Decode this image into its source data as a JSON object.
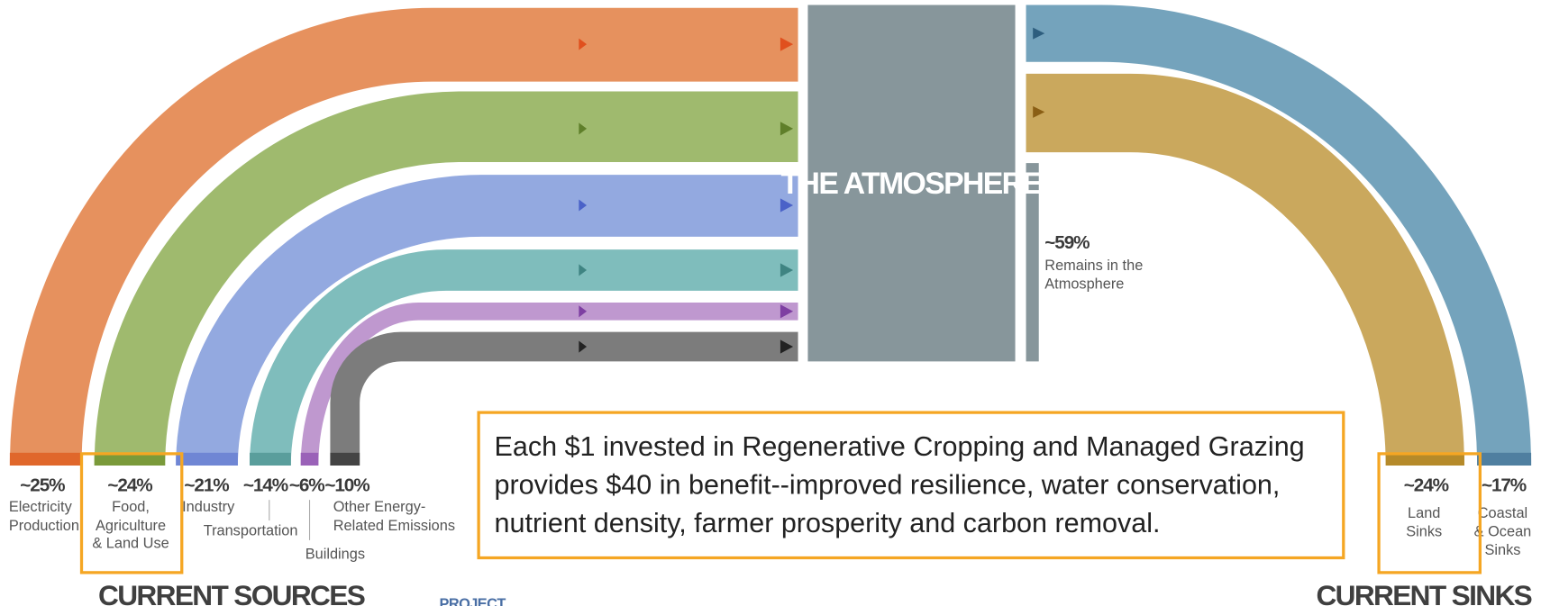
{
  "sources": [
    {
      "percent": "~25%",
      "label": [
        "Electricity",
        "Production"
      ]
    },
    {
      "percent": "~24%",
      "label": [
        "Food,",
        "Agriculture",
        "& Land Use"
      ]
    },
    {
      "percent": "~21%",
      "label": [
        "Industry"
      ]
    },
    {
      "percent": "~14%",
      "label": [
        "Transportation"
      ]
    },
    {
      "percent": "~6%",
      "label": [
        "Buildings"
      ]
    },
    {
      "percent": "~10%",
      "label": [
        "Other Energy-",
        "Related Emissions"
      ]
    }
  ],
  "atmosphere": {
    "title": "THE ATMOSPHERE",
    "percent": "~59%",
    "label": [
      "Remains in the",
      "Atmosphere"
    ]
  },
  "sinks": [
    {
      "percent": "~24%",
      "label": [
        "Land",
        "Sinks"
      ]
    },
    {
      "percent": "~17%",
      "label": [
        "Coastal",
        "& Ocean",
        "Sinks"
      ]
    }
  ],
  "callout": [
    "Each $1 invested in Regenerative Cropping and Managed Grazing",
    "provides $40 in benefit--improved resilience, water conservation,",
    "nutrient density, farmer prosperity and carbon removal."
  ],
  "sources_heading": "CURRENT SOURCES",
  "sinks_heading": "CURRENT SINKS",
  "logo": "PROJECT"
}
